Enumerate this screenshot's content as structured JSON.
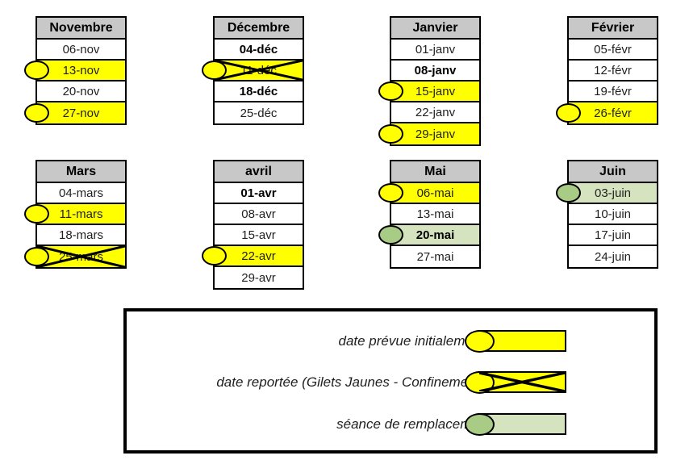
{
  "colors": {
    "header_bg": "#C8C8C8",
    "highlight_yellow": "#FFFF00",
    "replacement_green_bg": "#D6E3BF",
    "replacement_green_ellipse": "#A8CB85",
    "border": "#000000"
  },
  "months": [
    {
      "name": "Novembre",
      "rows": [
        {
          "date": "06-nov",
          "highlight": "none",
          "bold": false,
          "crossed": false,
          "ellipse": "none"
        },
        {
          "date": "13-nov",
          "highlight": "yellow",
          "bold": false,
          "crossed": false,
          "ellipse": "yellow"
        },
        {
          "date": "20-nov",
          "highlight": "none",
          "bold": false,
          "crossed": false,
          "ellipse": "none"
        },
        {
          "date": "27-nov",
          "highlight": "yellow",
          "bold": false,
          "crossed": false,
          "ellipse": "yellow"
        }
      ]
    },
    {
      "name": "Décembre",
      "rows": [
        {
          "date": "04-déc",
          "highlight": "none",
          "bold": true,
          "crossed": false,
          "ellipse": "none"
        },
        {
          "date": "11-déc",
          "highlight": "yellow",
          "bold": false,
          "crossed": true,
          "ellipse": "yellow"
        },
        {
          "date": "18-déc",
          "highlight": "none",
          "bold": true,
          "crossed": false,
          "ellipse": "none"
        },
        {
          "date": "25-déc",
          "highlight": "none",
          "bold": false,
          "crossed": false,
          "ellipse": "none"
        }
      ]
    },
    {
      "name": "Janvier",
      "rows": [
        {
          "date": "01-janv",
          "highlight": "none",
          "bold": false,
          "crossed": false,
          "ellipse": "none"
        },
        {
          "date": "08-janv",
          "highlight": "none",
          "bold": true,
          "crossed": false,
          "ellipse": "none"
        },
        {
          "date": "15-janv",
          "highlight": "yellow",
          "bold": false,
          "crossed": false,
          "ellipse": "yellow"
        },
        {
          "date": "22-janv",
          "highlight": "none",
          "bold": false,
          "crossed": false,
          "ellipse": "none"
        },
        {
          "date": "29-janv",
          "highlight": "yellow",
          "bold": false,
          "crossed": false,
          "ellipse": "yellow"
        }
      ]
    },
    {
      "name": "Février",
      "rows": [
        {
          "date": "05-févr",
          "highlight": "none",
          "bold": false,
          "crossed": false,
          "ellipse": "none"
        },
        {
          "date": "12-févr",
          "highlight": "none",
          "bold": false,
          "crossed": false,
          "ellipse": "none"
        },
        {
          "date": "19-févr",
          "highlight": "none",
          "bold": false,
          "crossed": false,
          "ellipse": "none"
        },
        {
          "date": "26-févr",
          "highlight": "yellow",
          "bold": false,
          "crossed": false,
          "ellipse": "yellow"
        }
      ]
    },
    {
      "name": "Mars",
      "rows": [
        {
          "date": "04-mars",
          "highlight": "none",
          "bold": false,
          "crossed": false,
          "ellipse": "none"
        },
        {
          "date": "11-mars",
          "highlight": "yellow",
          "bold": false,
          "crossed": false,
          "ellipse": "yellow"
        },
        {
          "date": "18-mars",
          "highlight": "none",
          "bold": false,
          "crossed": false,
          "ellipse": "none"
        },
        {
          "date": "25-mars",
          "highlight": "yellow",
          "bold": false,
          "crossed": true,
          "ellipse": "yellow"
        }
      ]
    },
    {
      "name": "avril",
      "rows": [
        {
          "date": "01-avr",
          "highlight": "none",
          "bold": true,
          "crossed": false,
          "ellipse": "none"
        },
        {
          "date": "08-avr",
          "highlight": "none",
          "bold": false,
          "crossed": false,
          "ellipse": "none"
        },
        {
          "date": "15-avr",
          "highlight": "none",
          "bold": false,
          "crossed": false,
          "ellipse": "none"
        },
        {
          "date": "22-avr",
          "highlight": "yellow",
          "bold": false,
          "crossed": false,
          "ellipse": "yellow"
        },
        {
          "date": "29-avr",
          "highlight": "none",
          "bold": false,
          "crossed": false,
          "ellipse": "none"
        }
      ]
    },
    {
      "name": "Mai",
      "rows": [
        {
          "date": "06-mai",
          "highlight": "yellow",
          "bold": false,
          "crossed": false,
          "ellipse": "yellow"
        },
        {
          "date": "13-mai",
          "highlight": "none",
          "bold": false,
          "crossed": false,
          "ellipse": "none"
        },
        {
          "date": "20-mai",
          "highlight": "green",
          "bold": true,
          "crossed": false,
          "ellipse": "green"
        },
        {
          "date": "27-mai",
          "highlight": "none",
          "bold": false,
          "crossed": false,
          "ellipse": "none"
        }
      ]
    },
    {
      "name": "Juin",
      "rows": [
        {
          "date": "03-juin",
          "highlight": "green",
          "bold": false,
          "crossed": false,
          "ellipse": "green"
        },
        {
          "date": "10-juin",
          "highlight": "none",
          "bold": false,
          "crossed": false,
          "ellipse": "none"
        },
        {
          "date": "17-juin",
          "highlight": "none",
          "bold": false,
          "crossed": false,
          "ellipse": "none"
        },
        {
          "date": "24-juin",
          "highlight": "none",
          "bold": false,
          "crossed": false,
          "ellipse": "none"
        }
      ]
    }
  ],
  "legend": {
    "items": [
      {
        "label": "date prévue initialement",
        "swatch": "yellow",
        "crossed": false,
        "ellipse": "yellow"
      },
      {
        "label": "date reportée (Gilets Jaunes - Confinement)",
        "swatch": "yellow",
        "crossed": true,
        "ellipse": "yellow"
      },
      {
        "label": "séance de remplacement",
        "swatch": "green",
        "crossed": false,
        "ellipse": "green"
      }
    ]
  }
}
